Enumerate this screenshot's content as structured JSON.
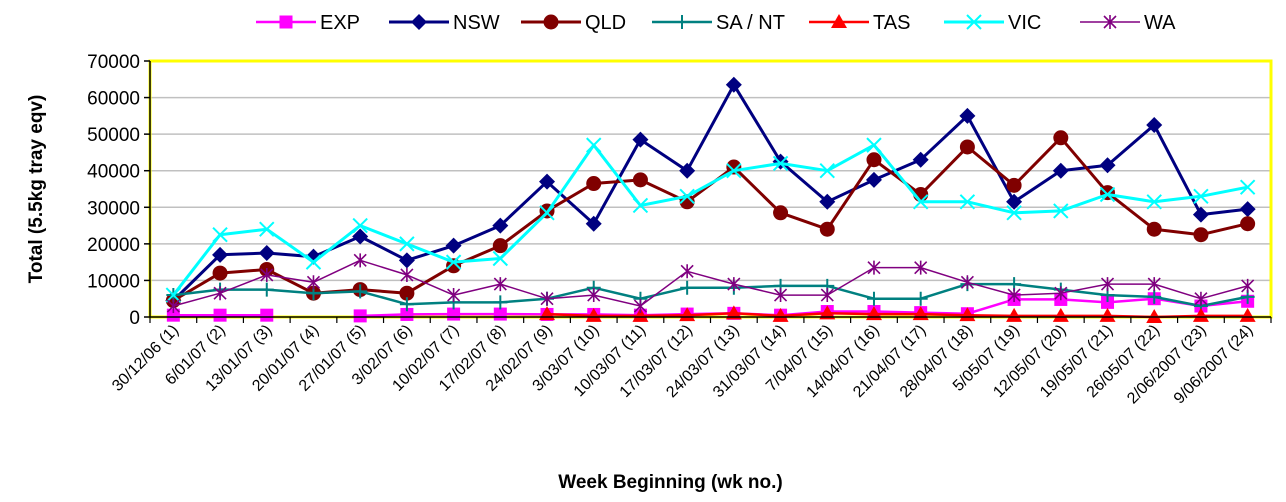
{
  "chart_data": {
    "type": "line",
    "xlabel": "Week Beginning (wk no.)",
    "ylabel": "Total (5.5kg tray eqv)",
    "ylim": [
      0,
      70000
    ],
    "yticks": [
      "0",
      "10000",
      "20000",
      "30000",
      "40000",
      "50000",
      "60000",
      "70000"
    ],
    "grid": "horizontal",
    "legend_position": "top",
    "plot_area_color": "#ffffff",
    "plot_border_color": "#ffff00",
    "categories": [
      "30/12/06 (1)",
      "6/01/07 (2)",
      "13/01/07 (3)",
      "20/01/07 (4)",
      "27/01/07 (5)",
      "3/02/07 (6)",
      "10/02/07 (7)",
      "17/02/07 (8)",
      "24/02/07 (9)",
      "3/03/07 (10)",
      "10/03/07 (11)",
      "17/03/07 (12)",
      "24/03/07 (13)",
      "31/03/07 (14)",
      "7/04/07 (15)",
      "14/04/07 (16)",
      "21/04/07 (17)",
      "28/04/07 (18)",
      "5/05/07 (19)",
      "12/05/07 (20)",
      "19/05/07 (21)",
      "26/05/07 (22)",
      "2/06/2007 (23)",
      "9/06/2007 (24)"
    ],
    "series": [
      {
        "name": "EXP",
        "color": "#ff00ff",
        "marker": "square",
        "width": 2.5,
        "values": [
          500,
          500,
          500,
          null,
          300,
          700,
          800,
          800,
          700,
          700,
          500,
          800,
          1000,
          500,
          1500,
          1500,
          1200,
          900,
          4800,
          4800,
          4000,
          5000,
          3000,
          4300
        ]
      },
      {
        "name": "NSW",
        "color": "#000080",
        "marker": "diamond",
        "width": 3,
        "values": [
          4500,
          17000,
          17500,
          16500,
          22000,
          15500,
          19500,
          25000,
          37000,
          25500,
          48500,
          40000,
          63500,
          42500,
          31500,
          37500,
          43000,
          55000,
          31500,
          40000,
          41500,
          52500,
          28000,
          29500
        ]
      },
      {
        "name": "QLD",
        "color": "#800000",
        "marker": "circle",
        "width": 3,
        "values": [
          4500,
          12000,
          13000,
          6500,
          7500,
          6500,
          14000,
          19500,
          29000,
          36500,
          37500,
          31500,
          41000,
          28500,
          24000,
          43000,
          33500,
          46500,
          36000,
          49000,
          34000,
          24000,
          22500,
          25500
        ]
      },
      {
        "name": "SA / NT",
        "color": "#008080",
        "marker": "plus",
        "width": 2.5,
        "values": [
          6000,
          7500,
          7500,
          6500,
          7000,
          3500,
          4000,
          4000,
          5000,
          8000,
          5000,
          8000,
          8000,
          8500,
          8500,
          5000,
          5000,
          9000,
          9000,
          7500,
          6000,
          5500,
          3000,
          5500
        ]
      },
      {
        "name": "TAS",
        "color": "#ff0000",
        "marker": "triangle",
        "width": 2.5,
        "values": [
          null,
          null,
          null,
          null,
          null,
          null,
          null,
          null,
          800,
          300,
          300,
          500,
          1000,
          300,
          1000,
          800,
          800,
          500,
          300,
          300,
          300,
          0,
          300,
          300
        ]
      },
      {
        "name": "VIC",
        "color": "#00ffff",
        "marker": "x",
        "width": 3,
        "values": [
          6000,
          22500,
          24000,
          15000,
          25000,
          20000,
          15000,
          16000,
          28500,
          47000,
          30500,
          33000,
          40000,
          42000,
          40000,
          47000,
          31500,
          31500,
          28500,
          29000,
          33500,
          31500,
          33000,
          35500
        ]
      },
      {
        "name": "WA",
        "color": "#800080",
        "marker": "star",
        "width": 1.5,
        "values": [
          3000,
          6500,
          11500,
          9500,
          15500,
          11500,
          6000,
          9000,
          5000,
          6000,
          3000,
          12500,
          9000,
          6000,
          6000,
          13500,
          13500,
          9500,
          6000,
          6500,
          9000,
          9000,
          5000,
          8500
        ]
      }
    ]
  }
}
